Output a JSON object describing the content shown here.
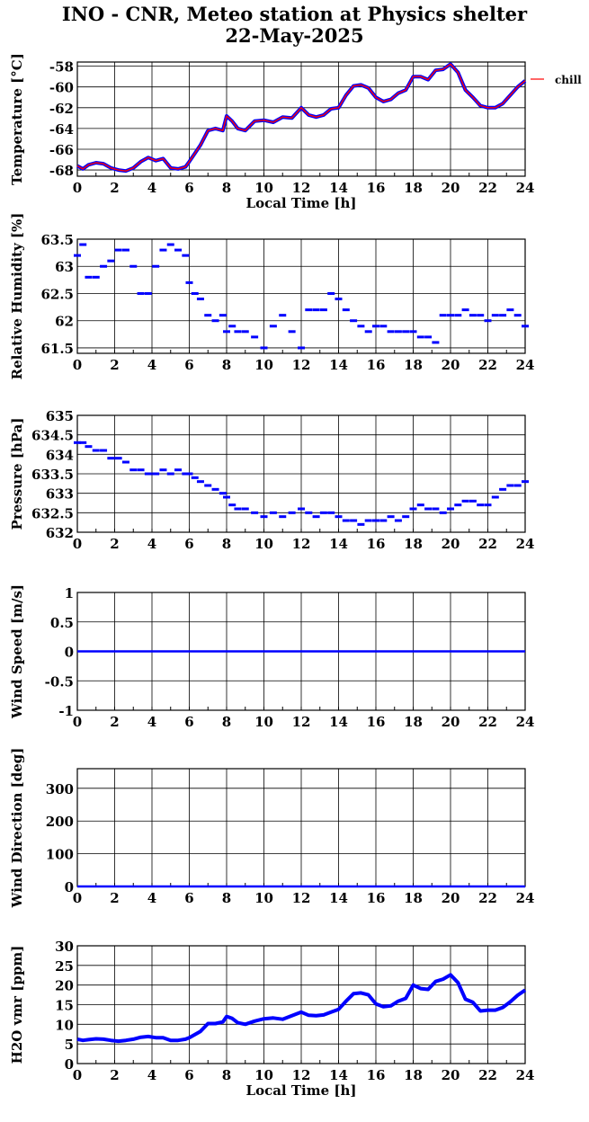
{
  "title": "INO - CNR, Meteo station at Physics shelter",
  "date": "22-May-2025",
  "chart_data": [
    {
      "type": "line",
      "ylabel": "Temperature [°C]",
      "xlabel": "Local Time [h]",
      "xlim": [
        0,
        24
      ],
      "ylim": [
        -68.6,
        -57.6
      ],
      "yticks": [
        -68,
        -66,
        -64,
        -62,
        -60,
        -58
      ],
      "xticks": [
        0,
        2,
        4,
        6,
        8,
        10,
        12,
        14,
        16,
        18,
        20,
        22,
        24
      ],
      "grid": true,
      "legend": "right, outside",
      "series": [
        {
          "name": "chill",
          "color": "#ff0000",
          "x": [
            0,
            0.3,
            0.6,
            1,
            1.4,
            1.8,
            2.2,
            2.6,
            3,
            3.4,
            3.8,
            4.2,
            4.6,
            5,
            5.4,
            5.8,
            6,
            6.3,
            6.6,
            7,
            7.4,
            7.8,
            8,
            8.3,
            8.6,
            9,
            9.5,
            10,
            10.5,
            11,
            11.5,
            12,
            12.4,
            12.8,
            13.2,
            13.6,
            14,
            14.4,
            14.8,
            15.2,
            15.6,
            16,
            16.4,
            16.8,
            17.2,
            17.6,
            18,
            18.4,
            18.8,
            19.2,
            19.6,
            20,
            20.4,
            20.8,
            21.2,
            21.6,
            22,
            22.4,
            22.8,
            23.2,
            23.6,
            24
          ],
          "y": [
            -67.6,
            -67.9,
            -67.5,
            -67.3,
            -67.4,
            -67.8,
            -68,
            -68.1,
            -67.8,
            -67.2,
            -66.8,
            -67.1,
            -66.9,
            -67.8,
            -67.9,
            -67.7,
            -67.2,
            -66.4,
            -65.6,
            -64.2,
            -64,
            -64.2,
            -62.8,
            -63.3,
            -64,
            -64.2,
            -63.3,
            -63.2,
            -63.4,
            -62.9,
            -63,
            -62,
            -62.7,
            -62.9,
            -62.7,
            -62.1,
            -62,
            -60.8,
            -59.9,
            -59.8,
            -60.1,
            -61,
            -61.4,
            -61.2,
            -60.6,
            -60.3,
            -59,
            -59,
            -59.3,
            -58.4,
            -58.3,
            -57.8,
            -58.6,
            -60.3,
            -61,
            -61.8,
            -62,
            -62,
            -61.6,
            -60.8,
            -60,
            -59.4
          ]
        }
      ]
    },
    {
      "type": "scatter",
      "ylabel": "Relative Humidity [%]",
      "xlim": [
        0,
        24
      ],
      "ylim": [
        61.4,
        63.5
      ],
      "yticks": [
        61.5,
        62,
        62.5,
        63,
        63.5
      ],
      "xticks": [
        0,
        2,
        4,
        6,
        8,
        10,
        12,
        14,
        16,
        18,
        20,
        22,
        24
      ],
      "grid": true,
      "series": [
        {
          "color": "#0000ff",
          "x": [
            0,
            0.3,
            0.6,
            1,
            1.4,
            1.8,
            2.2,
            2.6,
            3,
            3.4,
            3.8,
            4.2,
            4.6,
            5,
            5.4,
            5.8,
            6,
            6.3,
            6.6,
            7,
            7.4,
            7.8,
            8,
            8.3,
            8.6,
            9,
            9.5,
            10,
            10.5,
            11,
            11.5,
            12,
            12.4,
            12.8,
            13.2,
            13.6,
            14,
            14.4,
            14.8,
            15.2,
            15.6,
            16,
            16.4,
            16.8,
            17.2,
            17.6,
            18,
            18.4,
            18.8,
            19.2,
            19.6,
            20,
            20.4,
            20.8,
            21.2,
            21.6,
            22,
            22.4,
            22.8,
            23.2,
            23.6,
            24
          ],
          "y": [
            63.2,
            63.4,
            62.8,
            62.8,
            63,
            63.1,
            63.3,
            63.3,
            63,
            62.5,
            62.5,
            63,
            63.3,
            63.4,
            63.3,
            63.2,
            62.7,
            62.5,
            62.4,
            62.1,
            62,
            62.1,
            61.8,
            61.9,
            61.8,
            61.8,
            61.7,
            61.5,
            61.9,
            62.1,
            61.8,
            61.5,
            62.2,
            62.2,
            62.2,
            62.5,
            62.4,
            62.2,
            62,
            61.9,
            61.8,
            61.9,
            61.9,
            61.8,
            61.8,
            61.8,
            61.8,
            61.7,
            61.7,
            61.6,
            62.1,
            62.1,
            62.1,
            62.2,
            62.1,
            62.1,
            62,
            62.1,
            62.1,
            62.2,
            62.1,
            61.9
          ]
        }
      ]
    },
    {
      "type": "scatter",
      "ylabel": "Pressure [hPa]",
      "xlim": [
        0,
        24
      ],
      "ylim": [
        632,
        635
      ],
      "yticks": [
        632,
        632.5,
        633,
        633.5,
        634,
        634.5,
        635
      ],
      "xticks": [
        0,
        2,
        4,
        6,
        8,
        10,
        12,
        14,
        16,
        18,
        20,
        22,
        24
      ],
      "grid": true,
      "series": [
        {
          "color": "#0000ff",
          "x": [
            0,
            0.3,
            0.6,
            1,
            1.4,
            1.8,
            2.2,
            2.6,
            3,
            3.4,
            3.8,
            4.2,
            4.6,
            5,
            5.4,
            5.8,
            6,
            6.3,
            6.6,
            7,
            7.4,
            7.8,
            8,
            8.3,
            8.6,
            9,
            9.5,
            10,
            10.5,
            11,
            11.5,
            12,
            12.4,
            12.8,
            13.2,
            13.6,
            14,
            14.4,
            14.8,
            15.2,
            15.6,
            16,
            16.4,
            16.8,
            17.2,
            17.6,
            18,
            18.4,
            18.8,
            19.2,
            19.6,
            20,
            20.4,
            20.8,
            21.2,
            21.6,
            22,
            22.4,
            22.8,
            23.2,
            23.6,
            24
          ],
          "y": [
            634.3,
            634.3,
            634.2,
            634.1,
            634.1,
            633.9,
            633.9,
            633.8,
            633.6,
            633.6,
            633.5,
            633.5,
            633.6,
            633.5,
            633.6,
            633.5,
            633.5,
            633.4,
            633.3,
            633.2,
            633.1,
            633,
            632.9,
            632.7,
            632.6,
            632.6,
            632.5,
            632.4,
            632.5,
            632.4,
            632.5,
            632.6,
            632.5,
            632.4,
            632.5,
            632.5,
            632.4,
            632.3,
            632.3,
            632.2,
            632.3,
            632.3,
            632.3,
            632.4,
            632.3,
            632.4,
            632.6,
            632.7,
            632.6,
            632.6,
            632.5,
            632.6,
            632.7,
            632.8,
            632.8,
            632.7,
            632.7,
            632.9,
            633.1,
            633.2,
            633.2,
            633.3
          ]
        }
      ]
    },
    {
      "type": "line",
      "ylabel": "Wind Speed [m/s]",
      "xlim": [
        0,
        24
      ],
      "ylim": [
        -1,
        1
      ],
      "yticks": [
        -1,
        -0.5,
        0,
        0.5,
        1
      ],
      "xticks": [
        0,
        2,
        4,
        6,
        8,
        10,
        12,
        14,
        16,
        18,
        20,
        22,
        24
      ],
      "grid": true,
      "series": [
        {
          "color": "#0000ff",
          "x": [
            0,
            24
          ],
          "y": [
            0,
            0
          ]
        }
      ]
    },
    {
      "type": "line",
      "ylabel": "Wind Direction [deg]",
      "xlim": [
        0,
        24
      ],
      "ylim": [
        0,
        360
      ],
      "yticks": [
        0,
        100,
        200,
        300
      ],
      "xticks": [
        0,
        2,
        4,
        6,
        8,
        10,
        12,
        14,
        16,
        18,
        20,
        22,
        24
      ],
      "grid": true,
      "series": [
        {
          "color": "#0000ff",
          "x": [
            0,
            24
          ],
          "y": [
            0,
            0
          ]
        }
      ]
    },
    {
      "type": "line",
      "ylabel": "H2O vmr [ppm]",
      "xlabel": "Local Time [h]",
      "xlim": [
        0,
        24
      ],
      "ylim": [
        0,
        30
      ],
      "yticks": [
        0,
        5,
        10,
        15,
        20,
        25,
        30
      ],
      "xticks": [
        0,
        2,
        4,
        6,
        8,
        10,
        12,
        14,
        16,
        18,
        20,
        22,
        24
      ],
      "grid": true,
      "series": [
        {
          "color": "#0000ff",
          "x": [
            0,
            0.3,
            0.6,
            1,
            1.4,
            1.8,
            2.2,
            2.6,
            3,
            3.4,
            3.8,
            4.2,
            4.6,
            5,
            5.4,
            5.8,
            6,
            6.3,
            6.6,
            7,
            7.4,
            7.8,
            8,
            8.3,
            8.6,
            9,
            9.5,
            10,
            10.5,
            11,
            11.5,
            12,
            12.4,
            12.8,
            13.2,
            13.6,
            14,
            14.4,
            14.8,
            15.2,
            15.6,
            16,
            16.4,
            16.8,
            17.2,
            17.6,
            18,
            18.4,
            18.8,
            19.2,
            19.6,
            20,
            20.4,
            20.8,
            21.2,
            21.6,
            22,
            22.4,
            22.8,
            23.2,
            23.6,
            24
          ],
          "y": [
            6.2,
            5.9,
            6.1,
            6.3,
            6.2,
            5.9,
            5.7,
            5.9,
            6.2,
            6.7,
            6.9,
            6.6,
            6.6,
            5.9,
            5.9,
            6.2,
            6.6,
            7.4,
            8.2,
            10.2,
            10.2,
            10.6,
            12,
            11.5,
            10.4,
            10,
            10.8,
            11.4,
            11.6,
            11.3,
            12.2,
            13.1,
            12.3,
            12.2,
            12.4,
            13.1,
            13.8,
            15.9,
            17.8,
            18,
            17.5,
            15.2,
            14.5,
            14.7,
            15.9,
            16.6,
            20,
            19.1,
            18.9,
            20.9,
            21.5,
            22.6,
            20.6,
            16.4,
            15.6,
            13.4,
            13.6,
            13.6,
            14.3,
            15.7,
            17.4,
            18.7
          ]
        }
      ]
    }
  ]
}
